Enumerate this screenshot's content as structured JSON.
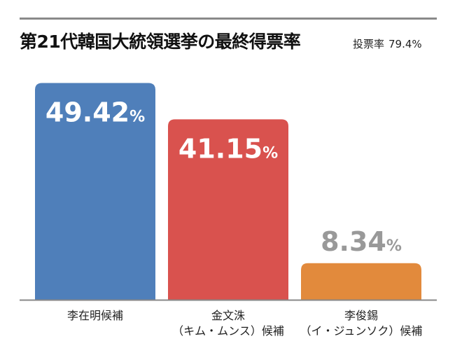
{
  "title": "第21代韓国大統領選挙の最終得票率",
  "turnout": {
    "label": "投票率",
    "value": "79.4%"
  },
  "chart_data": {
    "type": "bar",
    "categories": [
      "李在明候補",
      "金文洙（キム・ムンス）候補",
      "李俊錫（イ・ジュンソク）候補"
    ],
    "category_lines": [
      [
        "李在明候補"
      ],
      [
        "金文洙",
        "（キム・ムンス）候補"
      ],
      [
        "李俊錫",
        "（イ・ジュンソク）候補"
      ]
    ],
    "values": [
      49.42,
      41.15,
      8.34
    ],
    "value_labels": [
      "49.42",
      "41.15",
      "8.34"
    ],
    "unit": "%",
    "colors": [
      "#4f7fba",
      "#d9524e",
      "#e28a3c"
    ],
    "label_colors": [
      "#ffffff",
      "#ffffff",
      "#999999"
    ],
    "ylim": [
      0,
      53.5
    ],
    "grid": false,
    "legend": "none"
  }
}
